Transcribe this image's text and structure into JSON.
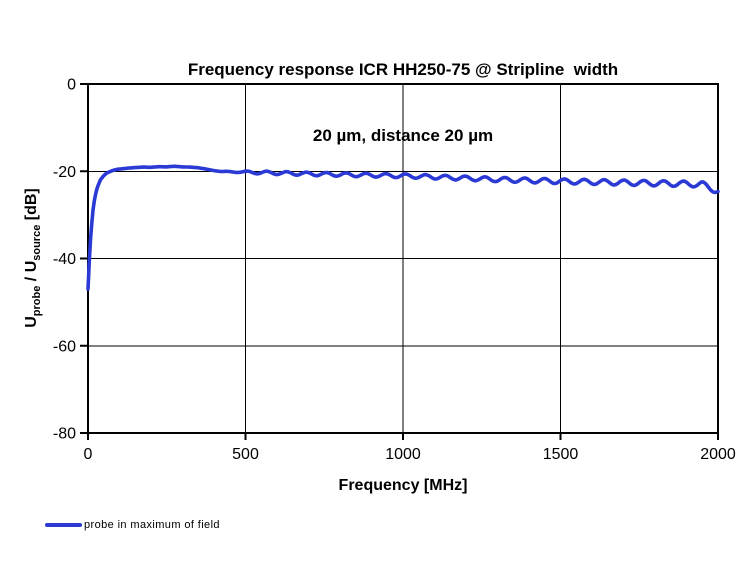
{
  "title": {
    "line1": "Frequency response ICR HH250-75 @ Stripline  width",
    "line2": "20 µm, distance 20 µm"
  },
  "axes": {
    "x": {
      "label": "Frequency [MHz]"
    },
    "y": {
      "label_parts": {
        "base1": "U",
        "sub1": "probe",
        "mid": " / U",
        "sub2": "source",
        "unit": " [dB]"
      }
    }
  },
  "legend": {
    "label": "probe in maximum of field"
  },
  "chart_data": {
    "type": "line",
    "title": "Frequency response ICR HH250-75 @ Stripline width 20 µm, distance 20 µm",
    "xlabel": "Frequency [MHz]",
    "ylabel": "Uprobe / Usource [dB]",
    "xlim": [
      0,
      2000
    ],
    "ylim": [
      -80,
      0
    ],
    "xticks": [
      0,
      500,
      1000,
      1500,
      2000
    ],
    "yticks": [
      0,
      -20,
      -40,
      -60,
      -80
    ],
    "grid": true,
    "legend_position": "bottom-left",
    "series": [
      {
        "name": "probe in maximum of field",
        "color": "#2b3ad4",
        "line_width": 3.6,
        "description": "Rises steeply from -47 dB at 0 MHz to a plateau of about -19 dB between 100 and 350 MHz, then declines slowly with small periodic ripples to about -24.6 dB at 2000 MHz.",
        "envelope_points": [
          [
            0,
            -47
          ],
          [
            5,
            -39
          ],
          [
            10,
            -33.5
          ],
          [
            15,
            -29.5
          ],
          [
            20,
            -26.8
          ],
          [
            25,
            -24.9
          ],
          [
            30,
            -23.6
          ],
          [
            40,
            -21.9
          ],
          [
            50,
            -21
          ],
          [
            60,
            -20.4
          ],
          [
            70,
            -20.05
          ],
          [
            80,
            -19.8
          ],
          [
            90,
            -19.6
          ],
          [
            100,
            -19.5
          ],
          [
            125,
            -19.3
          ],
          [
            150,
            -19.15
          ],
          [
            175,
            -19.05
          ],
          [
            200,
            -19.1
          ],
          [
            225,
            -18.95
          ],
          [
            250,
            -19
          ],
          [
            275,
            -18.85
          ],
          [
            300,
            -19
          ],
          [
            325,
            -19.05
          ],
          [
            350,
            -19.2
          ],
          [
            375,
            -19.5
          ],
          [
            400,
            -19.85
          ],
          [
            425,
            -20.05
          ],
          [
            450,
            -20.15
          ],
          [
            475,
            -20.1
          ],
          [
            500,
            -20.2
          ],
          [
            600,
            -20.4
          ],
          [
            700,
            -20.6
          ],
          [
            800,
            -20.75
          ],
          [
            900,
            -20.9
          ],
          [
            1000,
            -21.05
          ],
          [
            1100,
            -21.3
          ],
          [
            1200,
            -21.6
          ],
          [
            1300,
            -21.9
          ],
          [
            1400,
            -22.1
          ],
          [
            1500,
            -22.3
          ],
          [
            1600,
            -22.45
          ],
          [
            1700,
            -22.6
          ],
          [
            1800,
            -22.75
          ],
          [
            1900,
            -22.9
          ],
          [
            1950,
            -23
          ],
          [
            1975,
            -23.8
          ],
          [
            2000,
            -24.6
          ]
        ],
        "ripple": {
          "period_mhz": 63,
          "phase_deg": 213,
          "ramp_mhz": [
            400,
            550
          ],
          "amp_db_ramp_end": 0.35,
          "amp_db_at_2000": 0.65
        }
      }
    ]
  }
}
